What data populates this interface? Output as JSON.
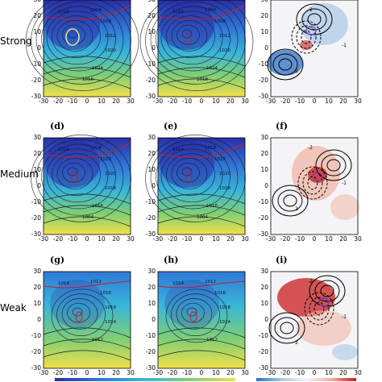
{
  "rows": [
    {
      "label": "Strong",
      "panels": [
        "",
        "",
        ""
      ]
    },
    {
      "label": "Medium",
      "panels": [
        "(d)",
        "(e)",
        "(f)"
      ]
    },
    {
      "label": "Weak",
      "panels": [
        "(g)",
        "(h)",
        "(i)"
      ]
    }
  ],
  "axes": {
    "x_ticks": [
      "-30",
      "-20",
      "-10",
      "0",
      "10",
      "20",
      "30"
    ],
    "y_ticks": [
      "30",
      "20",
      "10",
      "0",
      "-10",
      "-20",
      "-30"
    ]
  },
  "contour_labels": {
    "strong_pressure": [
      "1016",
      "1004",
      "1008",
      "1012",
      "1020",
      "1024",
      "1018"
    ],
    "medium_pressure": [
      "1014",
      "1018",
      "1012",
      "1020",
      "1018",
      "1016",
      "1004"
    ],
    "weak_pressure": [
      "1014",
      "1012",
      "1016",
      "1018",
      "1014",
      "1012"
    ],
    "diff": [
      "-2",
      "2",
      "-1",
      "1",
      "-1"
    ]
  },
  "colors": {
    "deep_blue": "#2a2fa8",
    "blue": "#2f78d8",
    "cyan": "#39b6d8",
    "green": "#7fcf74",
    "yellow": "#f2e04a",
    "red_anom": "#c81e1e",
    "blue_anom": "#2f6fc2",
    "contour_red": "#c0202a"
  }
}
